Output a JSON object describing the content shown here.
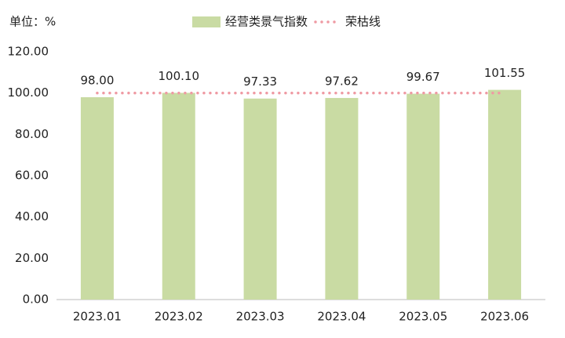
{
  "chart_data": {
    "type": "bar",
    "unit_label": "单位：%",
    "categories": [
      "2023.01",
      "2023.02",
      "2023.03",
      "2023.04",
      "2023.05",
      "2023.06"
    ],
    "series": [
      {
        "name": "经营类景气指数",
        "type": "bar",
        "color": "#c9dba3",
        "values": [
          98.0,
          100.1,
          97.33,
          97.62,
          99.67,
          101.55
        ],
        "value_labels": [
          "98.00",
          "100.10",
          "97.33",
          "97.62",
          "99.67",
          "101.55"
        ]
      },
      {
        "name": "荣枯线",
        "type": "line",
        "color": "#ef9aa3",
        "dotted": true,
        "values": [
          100,
          100,
          100,
          100,
          100,
          100
        ]
      }
    ],
    "ylim": [
      0,
      120
    ],
    "yticks": [
      {
        "value": 0,
        "label": "0.00"
      },
      {
        "value": 20,
        "label": "20.00"
      },
      {
        "value": 40,
        "label": "40.00"
      },
      {
        "value": 60,
        "label": "60.00"
      },
      {
        "value": 80,
        "label": "80.00"
      },
      {
        "value": 100,
        "label": "100.00"
      },
      {
        "value": 120,
        "label": "120.00"
      }
    ],
    "grid": false,
    "legend": "top"
  }
}
